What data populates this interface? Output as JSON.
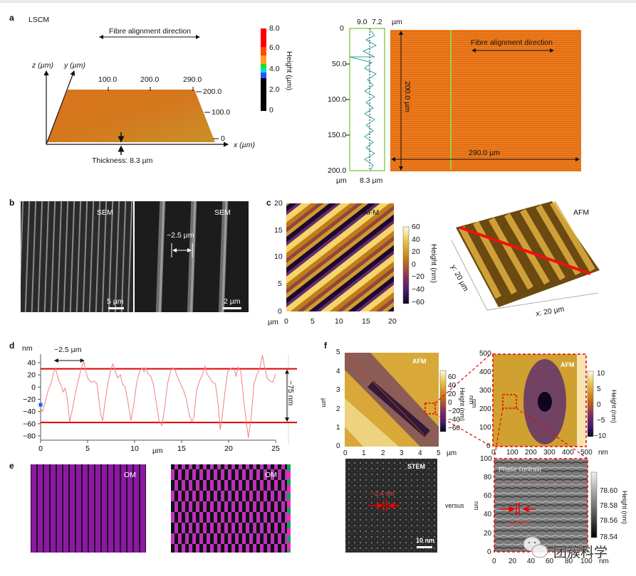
{
  "panels": {
    "a": {
      "letter": "a",
      "lscm": {
        "title": "LSCM",
        "arrow_label": "Fibre alignment direction",
        "axis_z": "z (µm)",
        "axis_y": "y (µm)",
        "axis_x": "x (µm)",
        "x_ticks": [
          "100.0",
          "200.0",
          "290.0"
        ],
        "y_ticks": [
          "200.0",
          "100.0",
          "0"
        ],
        "thickness": "Thickness: 8.3 µm",
        "colorbar": {
          "label": "Height (µm)",
          "ticks": [
            "8.0",
            "6.0",
            "4.0",
            "2.0",
            "0"
          ],
          "colors": [
            "#ff0000",
            "#ff6600",
            "#ffcc00",
            "#22dd22",
            "#00dddd",
            "#2255ff",
            "#000000"
          ]
        }
      },
      "profile": {
        "top_ticks": [
          "9.0",
          "7.2"
        ],
        "top_unit": "µm",
        "y_ticks": [
          "0",
          "50.0",
          "100.0",
          "150.0",
          "200.0"
        ],
        "y_unit": "µm",
        "bottom_label": "8.3 µm"
      },
      "map": {
        "arrow_label": "Fibre alignment direction",
        "height_label": "200.0 µm",
        "width_label": "290.0 µm"
      }
    },
    "b": {
      "letter": "b",
      "left": {
        "tag": "SEM",
        "scale": "5 µm"
      },
      "right": {
        "tag": "SEM",
        "scale": "2 µm",
        "spacing": "~2.5 µm"
      }
    },
    "c": {
      "letter": "c",
      "afm2d": {
        "tag": "AFM",
        "x_ticks": [
          "0",
          "5",
          "10",
          "15",
          "20"
        ],
        "y_ticks": [
          "20",
          "15",
          "10",
          "5",
          "0"
        ],
        "unit": "µm",
        "colorbar": {
          "label": "Height (nm)",
          "ticks": [
            "60",
            "40",
            "20",
            "0",
            "−20",
            "−40",
            "−60"
          ]
        }
      },
      "afm3d": {
        "tag": "AFM",
        "x_label": "x: 20 µm",
        "y_label": "y: 20 µm"
      }
    },
    "d": {
      "letter": "d"
    },
    "e": {
      "letter": "e",
      "left": {
        "tag": "OM"
      },
      "right": {
        "tag": "OM"
      }
    },
    "f": {
      "letter": "f",
      "afm_large": {
        "tag": "AFM",
        "x_ticks": [
          "0",
          "1",
          "2",
          "3",
          "4",
          "5"
        ],
        "y_ticks": [
          "5",
          "4",
          "3",
          "2",
          "1",
          "0"
        ],
        "x_unit": "µm",
        "y_unit": "µm",
        "colorbar": {
          "label": "Height (nm)",
          "unit": "nm",
          "ticks": [
            "60",
            "40",
            "20",
            "0",
            "−20",
            "−40",
            "−60"
          ]
        }
      },
      "afm_zoom": {
        "tag": "AFM",
        "x_ticks": [
          "0",
          "100",
          "200",
          "300",
          "400",
          "500"
        ],
        "y_ticks": [
          "500",
          "400",
          "300",
          "200",
          "100",
          "0"
        ],
        "x_unit": "nm",
        "y_unit": "nm",
        "colorbar": {
          "label": "Height (nm)",
          "ticks": [
            "10",
            "5",
            "0",
            "−5",
            "−10"
          ]
        }
      },
      "stem": {
        "tag": "STEM",
        "spacing": "~2.4 nm",
        "scale": "10 nm"
      },
      "versus": "versus",
      "phase": {
        "tag": "Phase contrast",
        "spacing": "~2.4 nm",
        "x_ticks": [
          "0",
          "20",
          "40",
          "60",
          "80",
          "100"
        ],
        "y_ticks": [
          "100",
          "80",
          "60",
          "40",
          "20",
          "0"
        ],
        "x_unit": "nm",
        "y_unit": "nm",
        "colorbar": {
          "label": "Height (nm)",
          "ticks": [
            "78.60",
            "78.58",
            "78.56",
            "78.54"
          ]
        }
      }
    }
  },
  "watermark": "团簇科学",
  "chart_data": {
    "type": "line",
    "title": "",
    "xlabel": "µm",
    "ylabel": "nm",
    "xlim": [
      0,
      25
    ],
    "ylim": [
      -85,
      50
    ],
    "x_ticks": [
      0,
      5,
      10,
      15,
      20,
      25
    ],
    "y_ticks": [
      40,
      20,
      0,
      -20,
      -40,
      -60,
      -80
    ],
    "x_tick_labels": [
      "0",
      "5",
      "10",
      "15",
      "20",
      "25"
    ],
    "y_tick_labels": [
      "40",
      "20",
      "0",
      "−20",
      "−40",
      "−60",
      "−80"
    ],
    "grid": false,
    "series": [
      {
        "name": "height profile",
        "color": "#f08080",
        "x": [
          0,
          0.2,
          0.5,
          0.8,
          1.1,
          1.4,
          1.6,
          1.9,
          2.2,
          2.4,
          2.6,
          2.8,
          3.1,
          3.4,
          3.7,
          4.0,
          4.3,
          4.6,
          4.8,
          5.1,
          5.4,
          5.7,
          6.0,
          6.2,
          6.4,
          6.6,
          6.9,
          7.2,
          7.5,
          7.7,
          7.9,
          8.2,
          8.5,
          8.7,
          9.0,
          9.3,
          9.6,
          9.9,
          10.2,
          10.5,
          10.8,
          11.0,
          11.2,
          11.4,
          11.7,
          12.0,
          12.3,
          12.6,
          12.9,
          13.2,
          13.5,
          13.8,
          14.0,
          14.3,
          14.6,
          14.9,
          15.2,
          15.5,
          15.8,
          16.1,
          16.3,
          16.6,
          16.9,
          17.2,
          17.5,
          17.7,
          18.0,
          18.3,
          18.6,
          18.9,
          19.1,
          19.3,
          19.6,
          19.9,
          20.2,
          20.5,
          20.8,
          21.0,
          21.3,
          21.6,
          21.9,
          22.1,
          22.4,
          22.7,
          23.0,
          23.3,
          23.6,
          23.8,
          24.1,
          24.4,
          24.7,
          25.0
        ],
        "y": [
          -35,
          -40,
          -25,
          -5,
          5,
          25,
          30,
          12,
          2,
          -8,
          -2,
          -15,
          -57,
          -35,
          -10,
          10,
          30,
          42,
          25,
          12,
          8,
          10,
          5,
          -20,
          -45,
          -55,
          -20,
          10,
          30,
          38,
          28,
          15,
          20,
          5,
          0,
          -25,
          -55,
          -30,
          5,
          25,
          32,
          25,
          32,
          22,
          18,
          5,
          -25,
          -55,
          -63,
          -35,
          5,
          25,
          32,
          28,
          15,
          5,
          -5,
          -20,
          -45,
          -57,
          -50,
          -5,
          10,
          20,
          34,
          22,
          15,
          8,
          5,
          -30,
          -70,
          -50,
          -10,
          25,
          30,
          32,
          18,
          33,
          25,
          -20,
          -60,
          -83,
          -50,
          5,
          20,
          30,
          52,
          35,
          15,
          10,
          8,
          22
        ]
      }
    ],
    "reference_lines": [
      {
        "y": 30,
        "color": "#e00000"
      },
      {
        "y": -58,
        "color": "#e00000"
      }
    ],
    "annotations": [
      {
        "text": "~2.5 µm",
        "from_x": 1.5,
        "to_x": 4.6
      },
      {
        "text": "~75 nm",
        "from_y": 30,
        "to_y": -58
      }
    ],
    "marker": {
      "x": 0,
      "y": -29,
      "color": "#2255ff"
    }
  }
}
